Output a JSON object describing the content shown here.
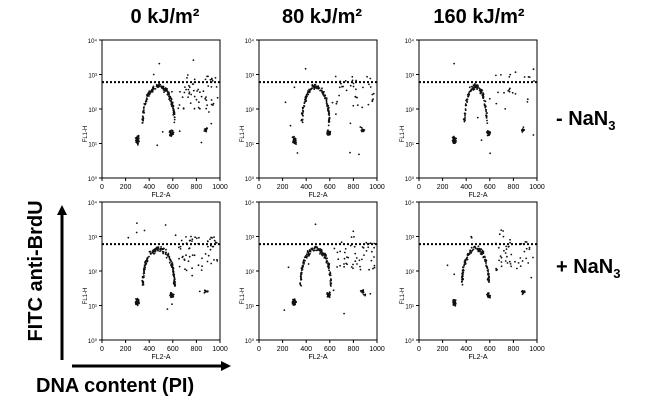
{
  "column_titles": [
    "0 kJ/m²",
    "80 kJ/m²",
    "160 kJ/m²"
  ],
  "row_labels": [
    {
      "prefix": "- NaN",
      "sub": "3"
    },
    {
      "prefix": "+ NaN",
      "sub": "3"
    }
  ],
  "y_title": "FITC anti-BrdU",
  "x_title": "DNA content (PI)",
  "chart_data": {
    "type": "scatter",
    "panel_xlabel": "FL2-A",
    "panel_ylabel": "FL1-H",
    "xlim": [
      0,
      1000
    ],
    "xticks": [
      0,
      200,
      400,
      600,
      800,
      1000
    ],
    "ylim_log": [
      1,
      10000
    ],
    "yticks": [
      "10⁰",
      "10¹",
      "10²",
      "10³",
      "10⁴"
    ],
    "threshold_y": 600,
    "threshold_style": "dotted",
    "panels": [
      {
        "row": 0,
        "col": 0,
        "dose": "0 kJ/m²",
        "treatment": "- NaN3",
        "s_phase_spread": 1.0,
        "g2_fraction": 1.0
      },
      {
        "row": 0,
        "col": 1,
        "dose": "80 kJ/m²",
        "treatment": "- NaN3",
        "s_phase_spread": 0.85,
        "g2_fraction": 0.6
      },
      {
        "row": 0,
        "col": 2,
        "dose": "160 kJ/m²",
        "treatment": "- NaN3",
        "s_phase_spread": 0.7,
        "g2_fraction": 0.35
      },
      {
        "row": 1,
        "col": 0,
        "dose": "0 kJ/m²",
        "treatment": "+ NaN3",
        "s_phase_spread": 1.0,
        "g2_fraction": 1.0
      },
      {
        "row": 1,
        "col": 1,
        "dose": "80 kJ/m²",
        "treatment": "+ NaN3",
        "s_phase_spread": 0.95,
        "g2_fraction": 0.85
      },
      {
        "row": 1,
        "col": 2,
        "dose": "160 kJ/m²",
        "treatment": "+ NaN3",
        "s_phase_spread": 0.85,
        "g2_fraction": 0.7
      }
    ]
  }
}
